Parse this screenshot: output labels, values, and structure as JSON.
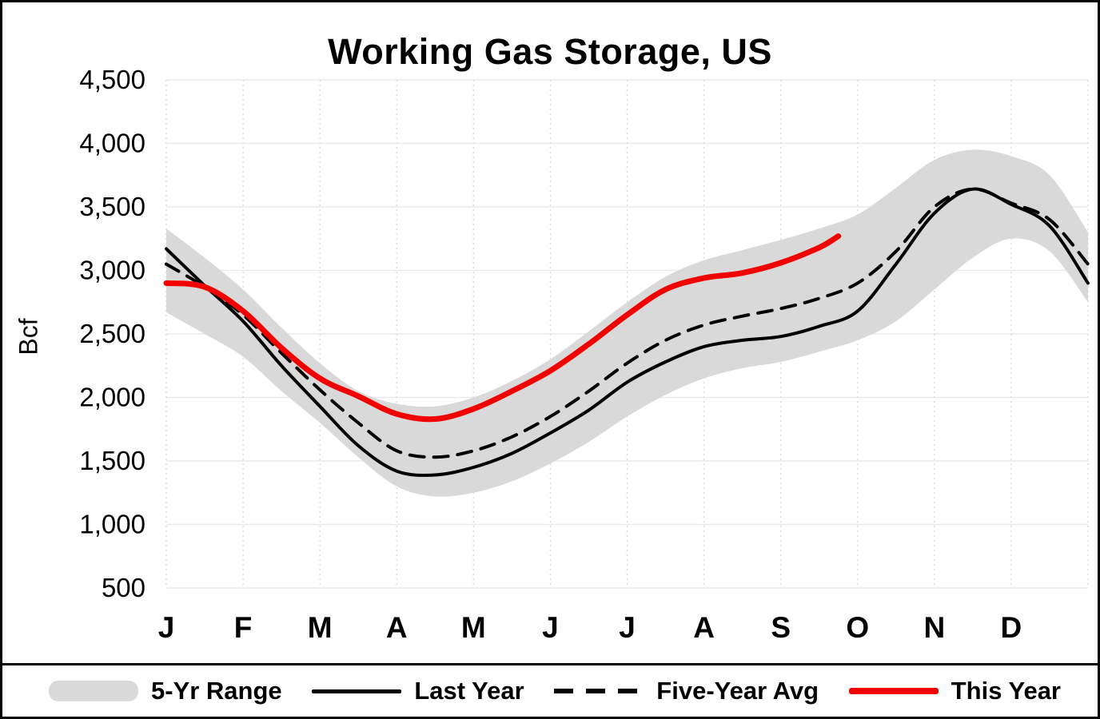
{
  "legend": {
    "items": [
      {
        "label": "5-Yr Range"
      },
      {
        "label": "Last Year"
      },
      {
        "label": "Five-Year Avg"
      },
      {
        "label": "This Year"
      }
    ]
  },
  "chart_data": {
    "type": "line",
    "title": "Working Gas Storage, US",
    "ylabel": "Bcf",
    "ylim": [
      500,
      4500
    ],
    "x_range": [
      0,
      12
    ],
    "grid": true,
    "legend_position": "bottom",
    "y_ticks": [
      {
        "value": 4500,
        "label": "4,500"
      },
      {
        "value": 4000,
        "label": "4,000"
      },
      {
        "value": 3500,
        "label": "3,500"
      },
      {
        "value": 3000,
        "label": "3,000"
      },
      {
        "value": 2500,
        "label": "2,500"
      },
      {
        "value": 2000,
        "label": "2,000"
      },
      {
        "value": 1500,
        "label": "1,500"
      },
      {
        "value": 1000,
        "label": "1,000"
      },
      {
        "value": 500,
        "label": "500"
      }
    ],
    "x_tick_labels": [
      "J",
      "F",
      "M",
      "A",
      "M",
      "J",
      "J",
      "A",
      "S",
      "O",
      "N",
      "D"
    ],
    "band": {
      "name": "5-Yr Range",
      "color": "#d9d9d9",
      "x": [
        0,
        0.5,
        1,
        1.5,
        2,
        2.5,
        3,
        3.5,
        4,
        4.5,
        5,
        5.5,
        6,
        6.5,
        7,
        7.5,
        8,
        8.5,
        9,
        9.5,
        10,
        10.5,
        11,
        11.5,
        12
      ],
      "upper": [
        3330,
        3100,
        2850,
        2550,
        2270,
        2050,
        1950,
        1930,
        2000,
        2130,
        2300,
        2520,
        2750,
        2950,
        3080,
        3160,
        3240,
        3330,
        3440,
        3650,
        3870,
        3950,
        3900,
        3750,
        3300
      ],
      "lower": [
        2670,
        2500,
        2320,
        2050,
        1800,
        1530,
        1300,
        1220,
        1250,
        1340,
        1480,
        1650,
        1850,
        2020,
        2150,
        2230,
        2280,
        2360,
        2450,
        2600,
        2850,
        3100,
        3250,
        3150,
        2750
      ]
    },
    "series": [
      {
        "name": "Last Year",
        "color": "#000000",
        "style": "solid",
        "width": 4,
        "x": [
          0,
          0.5,
          1,
          1.5,
          2,
          2.5,
          3,
          3.5,
          4,
          4.5,
          5,
          5.5,
          6,
          6.5,
          7,
          7.5,
          8,
          8.5,
          9,
          9.5,
          10,
          10.5,
          11,
          11.5,
          12
        ],
        "values": [
          3170,
          2880,
          2600,
          2250,
          1930,
          1620,
          1420,
          1390,
          1450,
          1560,
          1720,
          1900,
          2120,
          2280,
          2400,
          2450,
          2480,
          2560,
          2680,
          3050,
          3450,
          3640,
          3520,
          3350,
          2900
        ]
      },
      {
        "name": "Five-Year Avg",
        "color": "#000000",
        "style": "dashed",
        "width": 4,
        "x": [
          0,
          0.5,
          1,
          1.5,
          2,
          2.5,
          3,
          3.5,
          4,
          4.5,
          5,
          5.5,
          6,
          6.5,
          7,
          7.5,
          8,
          8.5,
          9,
          9.5,
          10,
          10.5,
          11,
          11.5,
          12
        ],
        "values": [
          3050,
          2870,
          2650,
          2350,
          2060,
          1800,
          1580,
          1530,
          1580,
          1690,
          1850,
          2050,
          2270,
          2450,
          2570,
          2640,
          2700,
          2780,
          2900,
          3150,
          3500,
          3640,
          3530,
          3400,
          3050
        ]
      },
      {
        "name": "This Year",
        "color": "#f20000",
        "style": "solid",
        "width": 7,
        "x": [
          0,
          0.5,
          1,
          1.5,
          2,
          2.5,
          3,
          3.5,
          4,
          4.5,
          5,
          5.5,
          6,
          6.5,
          7,
          7.5,
          8,
          8.5,
          8.75
        ],
        "values": [
          2900,
          2870,
          2680,
          2390,
          2150,
          2010,
          1870,
          1830,
          1910,
          2050,
          2210,
          2420,
          2650,
          2850,
          2940,
          2980,
          3060,
          3180,
          3270
        ]
      }
    ]
  }
}
